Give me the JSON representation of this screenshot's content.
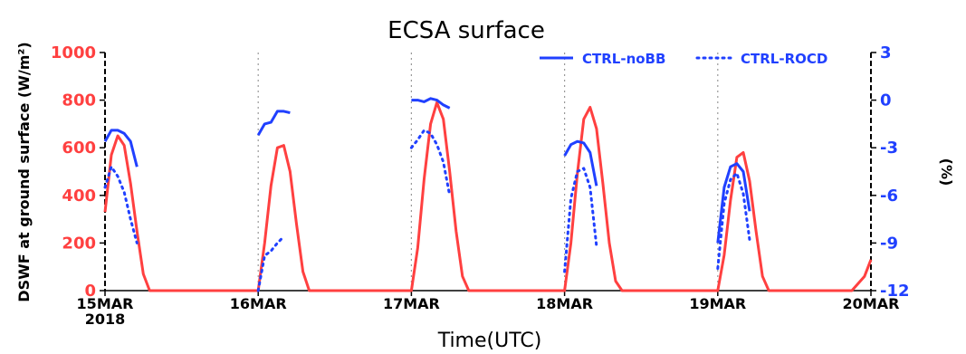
{
  "chart_data": {
    "type": "line",
    "title": "ECSA surface",
    "xlabel": "Time(UTC)",
    "ylabel_left": "DSWF at ground surface (W/m²)",
    "ylabel_right": "(%)",
    "x_ticks": [
      "15MAR\n2018",
      "16MAR",
      "17MAR",
      "18MAR",
      "19MAR",
      "20MAR"
    ],
    "x_range": [
      "15MAR2018 00:00",
      "20MAR2018 00:00"
    ],
    "ylim_left": [
      0,
      1000
    ],
    "y_ticks_left": [
      0,
      200,
      400,
      600,
      800,
      1000
    ],
    "ylim_right": [
      -12,
      3
    ],
    "y_ticks_right": [
      -12,
      -9,
      -6,
      -3,
      0,
      3
    ],
    "grid": "dotted vertical lines at day boundaries",
    "legend": {
      "placement": "top-right",
      "entries": [
        {
          "name": "CTRL-noBB",
          "style": "solid",
          "color": "#2040ff"
        },
        {
          "name": "CTRL-ROCD",
          "style": "dotted",
          "color": "#2040ff"
        }
      ]
    },
    "series": [
      {
        "name": "",
        "axis": "left",
        "color": "#ff4040",
        "style": "solid",
        "points": [
          [
            "15MAR 00",
            330
          ],
          [
            "15MAR 01",
            570
          ],
          [
            "15MAR 02",
            650
          ],
          [
            "15MAR 03",
            610
          ],
          [
            "15MAR 04",
            450
          ],
          [
            "15MAR 05",
            250
          ],
          [
            "15MAR 06",
            70
          ],
          [
            "15MAR 07",
            0
          ],
          [
            "16MAR 00",
            0
          ],
          [
            "16MAR 01",
            200
          ],
          [
            "16MAR 02",
            440
          ],
          [
            "16MAR 03",
            600
          ],
          [
            "16MAR 04",
            610
          ],
          [
            "16MAR 05",
            500
          ],
          [
            "16MAR 06",
            280
          ],
          [
            "16MAR 07",
            80
          ],
          [
            "16MAR 08",
            0
          ],
          [
            "17MAR 00",
            0
          ],
          [
            "17MAR 01",
            180
          ],
          [
            "17MAR 02",
            470
          ],
          [
            "17MAR 03",
            700
          ],
          [
            "17MAR 04",
            790
          ],
          [
            "17MAR 05",
            720
          ],
          [
            "17MAR 06",
            500
          ],
          [
            "17MAR 07",
            250
          ],
          [
            "17MAR 08",
            60
          ],
          [
            "17MAR 09",
            0
          ],
          [
            "18MAR 00",
            0
          ],
          [
            "18MAR 01",
            200
          ],
          [
            "18MAR 02",
            490
          ],
          [
            "18MAR 03",
            720
          ],
          [
            "18MAR 04",
            770
          ],
          [
            "18MAR 05",
            680
          ],
          [
            "18MAR 06",
            450
          ],
          [
            "18MAR 07",
            200
          ],
          [
            "18MAR 08",
            40
          ],
          [
            "18MAR 09",
            0
          ],
          [
            "19MAR 00",
            0
          ],
          [
            "19MAR 01",
            150
          ],
          [
            "19MAR 02",
            380
          ],
          [
            "19MAR 03",
            560
          ],
          [
            "19MAR 04",
            580
          ],
          [
            "19MAR 05",
            460
          ],
          [
            "19MAR 06",
            250
          ],
          [
            "19MAR 07",
            60
          ],
          [
            "19MAR 08",
            0
          ],
          [
            "19MAR 21",
            0
          ],
          [
            "19MAR 23",
            60
          ],
          [
            "20MAR 00",
            130
          ]
        ]
      },
      {
        "name": "CTRL-noBB",
        "axis": "right",
        "color": "#2040ff",
        "style": "solid",
        "segments": [
          [
            [
              "15MAR 00",
              -2.6
            ],
            [
              "15MAR 01",
              -1.9
            ],
            [
              "15MAR 02",
              -1.9
            ],
            [
              "15MAR 03",
              -2.1
            ],
            [
              "15MAR 04",
              -2.6
            ],
            [
              "15MAR 05",
              -4.2
            ]
          ],
          [
            [
              "16MAR 00",
              -2.2
            ],
            [
              "16MAR 01",
              -1.5
            ],
            [
              "16MAR 02",
              -1.4
            ],
            [
              "16MAR 03",
              -0.7
            ],
            [
              "16MAR 04",
              -0.7
            ],
            [
              "16MAR 05",
              -0.8
            ]
          ],
          [
            [
              "17MAR 00",
              0.0
            ],
            [
              "17MAR 01",
              0.0
            ],
            [
              "17MAR 02",
              -0.1
            ],
            [
              "17MAR 03",
              0.1
            ],
            [
              "17MAR 04",
              0.0
            ],
            [
              "17MAR 05",
              -0.3
            ],
            [
              "17MAR 06",
              -0.5
            ]
          ],
          [
            [
              "18MAR 00",
              -3.5
            ],
            [
              "18MAR 01",
              -2.8
            ],
            [
              "18MAR 02",
              -2.6
            ],
            [
              "18MAR 03",
              -2.7
            ],
            [
              "18MAR 04",
              -3.3
            ],
            [
              "18MAR 05",
              -5.4
            ]
          ],
          [
            [
              "19MAR 00",
              -9.0
            ],
            [
              "19MAR 01",
              -5.5
            ],
            [
              "19MAR 02",
              -4.2
            ],
            [
              "19MAR 03",
              -4.0
            ],
            [
              "19MAR 04",
              -4.5
            ],
            [
              "19MAR 05",
              -7.0
            ]
          ]
        ]
      },
      {
        "name": "CTRL-ROCD",
        "axis": "right",
        "color": "#2040ff",
        "style": "dotted",
        "segments": [
          [
            [
              "15MAR 00",
              -5.5
            ],
            [
              "15MAR 01",
              -4.2
            ],
            [
              "15MAR 02",
              -4.8
            ],
            [
              "15MAR 03",
              -5.8
            ],
            [
              "15MAR 04",
              -7.5
            ],
            [
              "15MAR 05",
              -9.0
            ]
          ],
          [
            [
              "16MAR 00",
              -12.0
            ],
            [
              "16MAR 01",
              -9.8
            ],
            [
              "16MAR 02",
              -9.5
            ],
            [
              "16MAR 03",
              -9.0
            ],
            [
              "16MAR 04",
              -8.6
            ]
          ],
          [
            [
              "17MAR 00",
              -3.0
            ],
            [
              "17MAR 01",
              -2.5
            ],
            [
              "17MAR 02",
              -1.9
            ],
            [
              "17MAR 03",
              -2.1
            ],
            [
              "17MAR 04",
              -2.8
            ],
            [
              "17MAR 05",
              -3.9
            ],
            [
              "17MAR 06",
              -6.0
            ]
          ],
          [
            [
              "18MAR 00",
              -10.8
            ],
            [
              "18MAR 01",
              -6.2
            ],
            [
              "18MAR 02",
              -4.5
            ],
            [
              "18MAR 03",
              -4.3
            ],
            [
              "18MAR 04",
              -5.5
            ],
            [
              "18MAR 05",
              -9.2
            ]
          ],
          [
            [
              "19MAR 00",
              -10.6
            ],
            [
              "19MAR 01",
              -6.5
            ],
            [
              "19MAR 02",
              -5.0
            ],
            [
              "19MAR 03",
              -4.6
            ],
            [
              "19MAR 04",
              -5.9
            ],
            [
              "19MAR 05",
              -8.8
            ]
          ]
        ]
      }
    ]
  }
}
